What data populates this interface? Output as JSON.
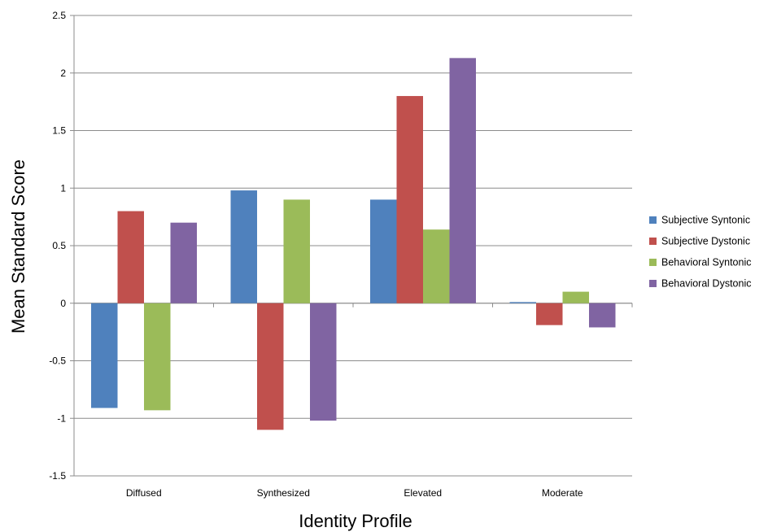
{
  "chart_data": {
    "type": "bar",
    "title": "",
    "xlabel": "Identity Profile",
    "ylabel": "Mean Standard Score",
    "categories": [
      "Diffused",
      "Synthesized",
      "Elevated",
      "Moderate"
    ],
    "ylim": [
      -1.5,
      2.5
    ],
    "yticks": [
      -1.5,
      -1,
      -0.5,
      0,
      0.5,
      1,
      1.5,
      2,
      2.5
    ],
    "ytick_labels": [
      "-1.5",
      "-1",
      "-0.5",
      "0",
      "0.5",
      "1",
      "1.5",
      "2",
      "2.5"
    ],
    "grid": "horizontal",
    "legend_position": "right",
    "series": [
      {
        "name": "Subjective Syntonic",
        "color": "#4F81BD",
        "values": [
          -0.91,
          0.98,
          0.9,
          0.01
        ]
      },
      {
        "name": "Subjective Dystonic",
        "color": "#C0504D",
        "values": [
          0.8,
          -1.1,
          1.8,
          -0.19
        ]
      },
      {
        "name": "Behavioral Syntonic",
        "color": "#9BBB59",
        "values": [
          -0.93,
          0.9,
          0.64,
          0.1
        ]
      },
      {
        "name": "Behavioral Dystonic",
        "color": "#8064A2",
        "values": [
          0.7,
          -1.02,
          2.13,
          -0.21
        ]
      }
    ]
  }
}
